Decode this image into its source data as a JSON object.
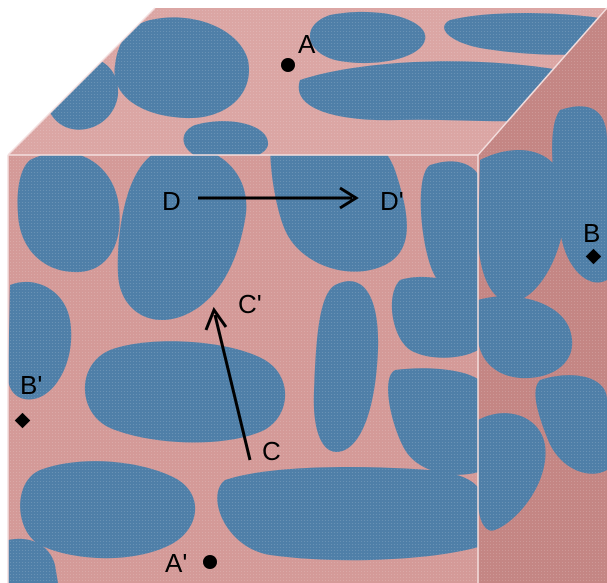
{
  "colors": {
    "matrix": "#d49a98",
    "matrix_side": "#c48684",
    "matrix_top": "#dba6a4",
    "grain": "#4f7fa8",
    "point": "#000000",
    "edge": "#f3dede"
  },
  "points": {
    "A": "A",
    "A_prime": "A'",
    "B": "B",
    "B_prime": "B'",
    "C": "C",
    "C_prime": "C'",
    "D": "D",
    "D_prime": "D'"
  }
}
